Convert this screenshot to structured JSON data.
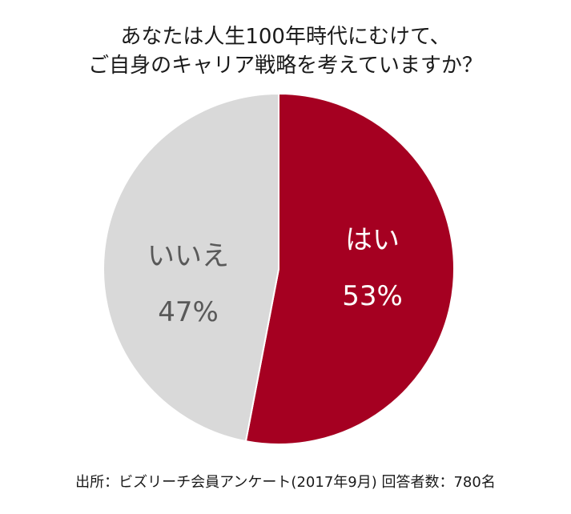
{
  "title": {
    "line1": "あなたは人生100年時代にむけて、",
    "line2": "ご自身のキャリア戦略を考えていますか？"
  },
  "chart_data": {
    "type": "pie",
    "title": "あなたは人生100年時代にむけて、ご自身のキャリア戦略を考えていますか？",
    "categories": [
      "はい",
      "いいえ"
    ],
    "values": [
      53,
      47
    ],
    "unit": "%",
    "colors": [
      "#a50021",
      "#d9d9d9"
    ],
    "label_colors": [
      "#ffffff",
      "#595959"
    ],
    "start_angle": "12 o'clock, clockwise",
    "legend": "none (labels inside slices)"
  },
  "labels": {
    "yes": {
      "name": "はい",
      "value": "53%"
    },
    "no": {
      "name": "いいえ",
      "value": "47%"
    }
  },
  "footer": {
    "source": "出所：ビズリーチ会員アンケート(2017年9月) 回答者数：780名"
  }
}
